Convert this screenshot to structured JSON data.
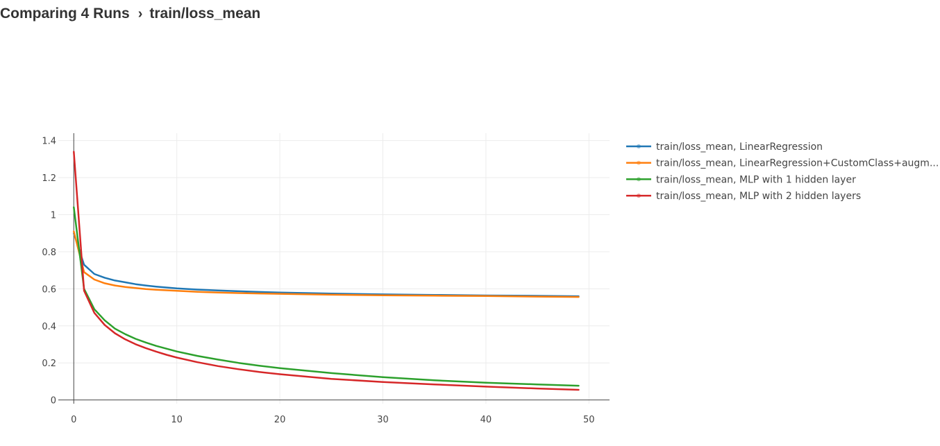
{
  "header": {
    "title": "Comparing 4 Runs",
    "separator": "›",
    "metric": "train/loss_mean"
  },
  "chart_data": {
    "type": "line",
    "title": "",
    "xlabel": "",
    "ylabel": "",
    "xlim": [
      -1.5,
      52
    ],
    "ylim": [
      -0.02,
      1.44
    ],
    "xticks": [
      0,
      10,
      20,
      30,
      40,
      50
    ],
    "yticks": [
      0,
      0.2,
      0.4,
      0.6,
      0.8,
      1,
      1.2,
      1.4
    ],
    "ytick_labels": [
      "0",
      "0.2",
      "0.4",
      "0.6",
      "0.8",
      "1",
      "1.2",
      "1.4"
    ],
    "grid": true,
    "legend_position": "right",
    "series": [
      {
        "name": "train/loss_mean, LinearRegression",
        "color": "#1f77b4",
        "x": [
          0,
          1,
          2,
          3,
          4,
          5,
          6,
          7,
          8,
          9,
          10,
          12,
          14,
          16,
          18,
          20,
          25,
          30,
          35,
          40,
          45,
          49
        ],
        "y": [
          0.9,
          0.73,
          0.68,
          0.66,
          0.645,
          0.635,
          0.625,
          0.618,
          0.612,
          0.607,
          0.602,
          0.596,
          0.591,
          0.587,
          0.583,
          0.58,
          0.574,
          0.57,
          0.567,
          0.564,
          0.562,
          0.56
        ]
      },
      {
        "name": "train/loss_mean, LinearRegression+CustomClass+augm...",
        "color": "#ff7f0e",
        "x": [
          0,
          1,
          2,
          3,
          4,
          5,
          6,
          7,
          8,
          9,
          10,
          12,
          14,
          16,
          18,
          20,
          25,
          30,
          35,
          40,
          45,
          49
        ],
        "y": [
          0.91,
          0.69,
          0.65,
          0.63,
          0.618,
          0.61,
          0.604,
          0.599,
          0.595,
          0.592,
          0.589,
          0.584,
          0.58,
          0.577,
          0.575,
          0.573,
          0.568,
          0.565,
          0.563,
          0.561,
          0.558,
          0.556
        ]
      },
      {
        "name": "train/loss_mean, MLP with 1 hidden layer",
        "color": "#2ca02c",
        "x": [
          0,
          1,
          2,
          3,
          4,
          5,
          6,
          7,
          8,
          9,
          10,
          12,
          14,
          16,
          18,
          20,
          25,
          30,
          35,
          40,
          45,
          49
        ],
        "y": [
          1.04,
          0.6,
          0.49,
          0.43,
          0.385,
          0.355,
          0.33,
          0.31,
          0.292,
          0.277,
          0.262,
          0.238,
          0.218,
          0.2,
          0.185,
          0.172,
          0.145,
          0.123,
          0.106,
          0.093,
          0.084,
          0.077
        ]
      },
      {
        "name": "train/loss_mean, MLP with 2 hidden layers",
        "color": "#d62728",
        "x": [
          0,
          1,
          2,
          3,
          4,
          5,
          6,
          7,
          8,
          9,
          10,
          12,
          14,
          16,
          18,
          20,
          25,
          30,
          35,
          40,
          45,
          49
        ],
        "y": [
          1.34,
          0.59,
          0.47,
          0.405,
          0.36,
          0.327,
          0.301,
          0.28,
          0.261,
          0.244,
          0.229,
          0.204,
          0.183,
          0.166,
          0.151,
          0.139,
          0.114,
          0.097,
          0.084,
          0.072,
          0.062,
          0.055
        ]
      }
    ]
  }
}
